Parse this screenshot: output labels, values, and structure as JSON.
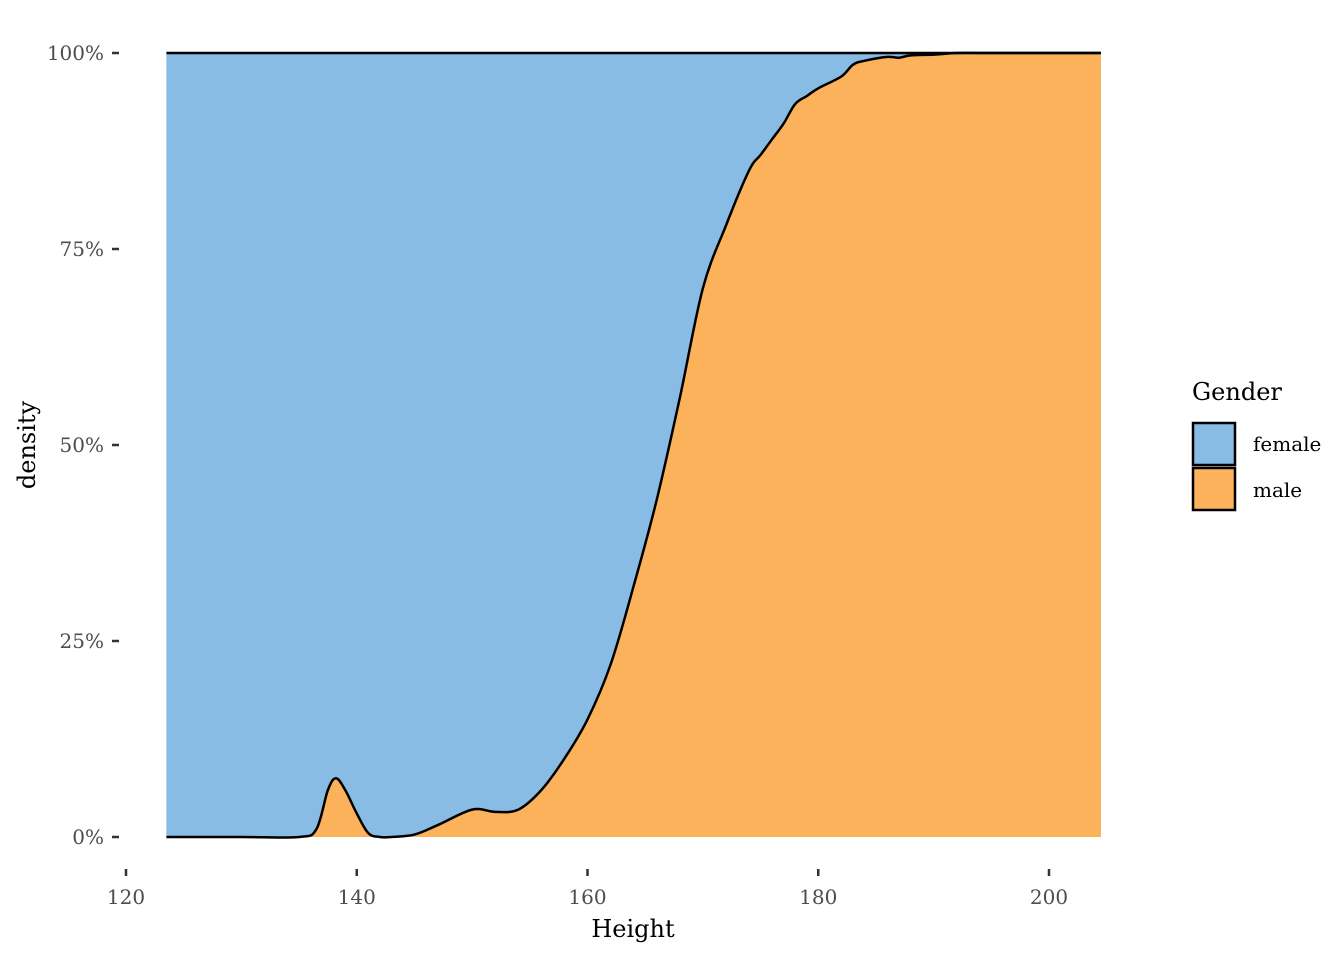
{
  "chart_data": {
    "type": "area",
    "subtype": "filled-density",
    "title": "",
    "xlabel": "Height",
    "ylabel": "density",
    "xlim": [
      120,
      205
    ],
    "ylim": [
      0,
      1
    ],
    "x_ticks": [
      120,
      140,
      160,
      180,
      200
    ],
    "y_ticks": [
      0,
      0.25,
      0.5,
      0.75,
      1
    ],
    "y_tick_labels": [
      "0%",
      "25%",
      "50%",
      "75%",
      "100%"
    ],
    "grid": false,
    "legend": {
      "title": "Gender",
      "position": "right",
      "entries": [
        {
          "label": "female",
          "color": "#89BCE4"
        },
        {
          "label": "male",
          "color": "#FBB25B"
        }
      ]
    },
    "boundary_series": {
      "name": "male share (boundary between male and female)",
      "x": [
        123.5,
        130,
        135,
        136.5,
        137.5,
        138.2,
        139,
        140,
        141,
        142,
        143,
        145,
        147,
        150,
        152,
        154,
        156,
        158,
        160,
        162,
        164,
        166,
        168,
        170,
        172,
        174,
        175,
        176,
        177,
        178,
        179,
        180,
        182,
        183,
        184,
        186,
        187,
        188,
        190,
        192,
        194,
        196,
        200,
        204.5
      ],
      "y": [
        0,
        0,
        0,
        0.01,
        0.06,
        0.075,
        0.06,
        0.03,
        0.005,
        0,
        0,
        0.003,
        0.015,
        0.035,
        0.032,
        0.035,
        0.06,
        0.1,
        0.15,
        0.22,
        0.32,
        0.43,
        0.56,
        0.7,
        0.78,
        0.85,
        0.87,
        0.89,
        0.91,
        0.935,
        0.945,
        0.955,
        0.97,
        0.985,
        0.99,
        0.995,
        0.994,
        0.997,
        0.998,
        1,
        1,
        1,
        1,
        1
      ]
    }
  }
}
